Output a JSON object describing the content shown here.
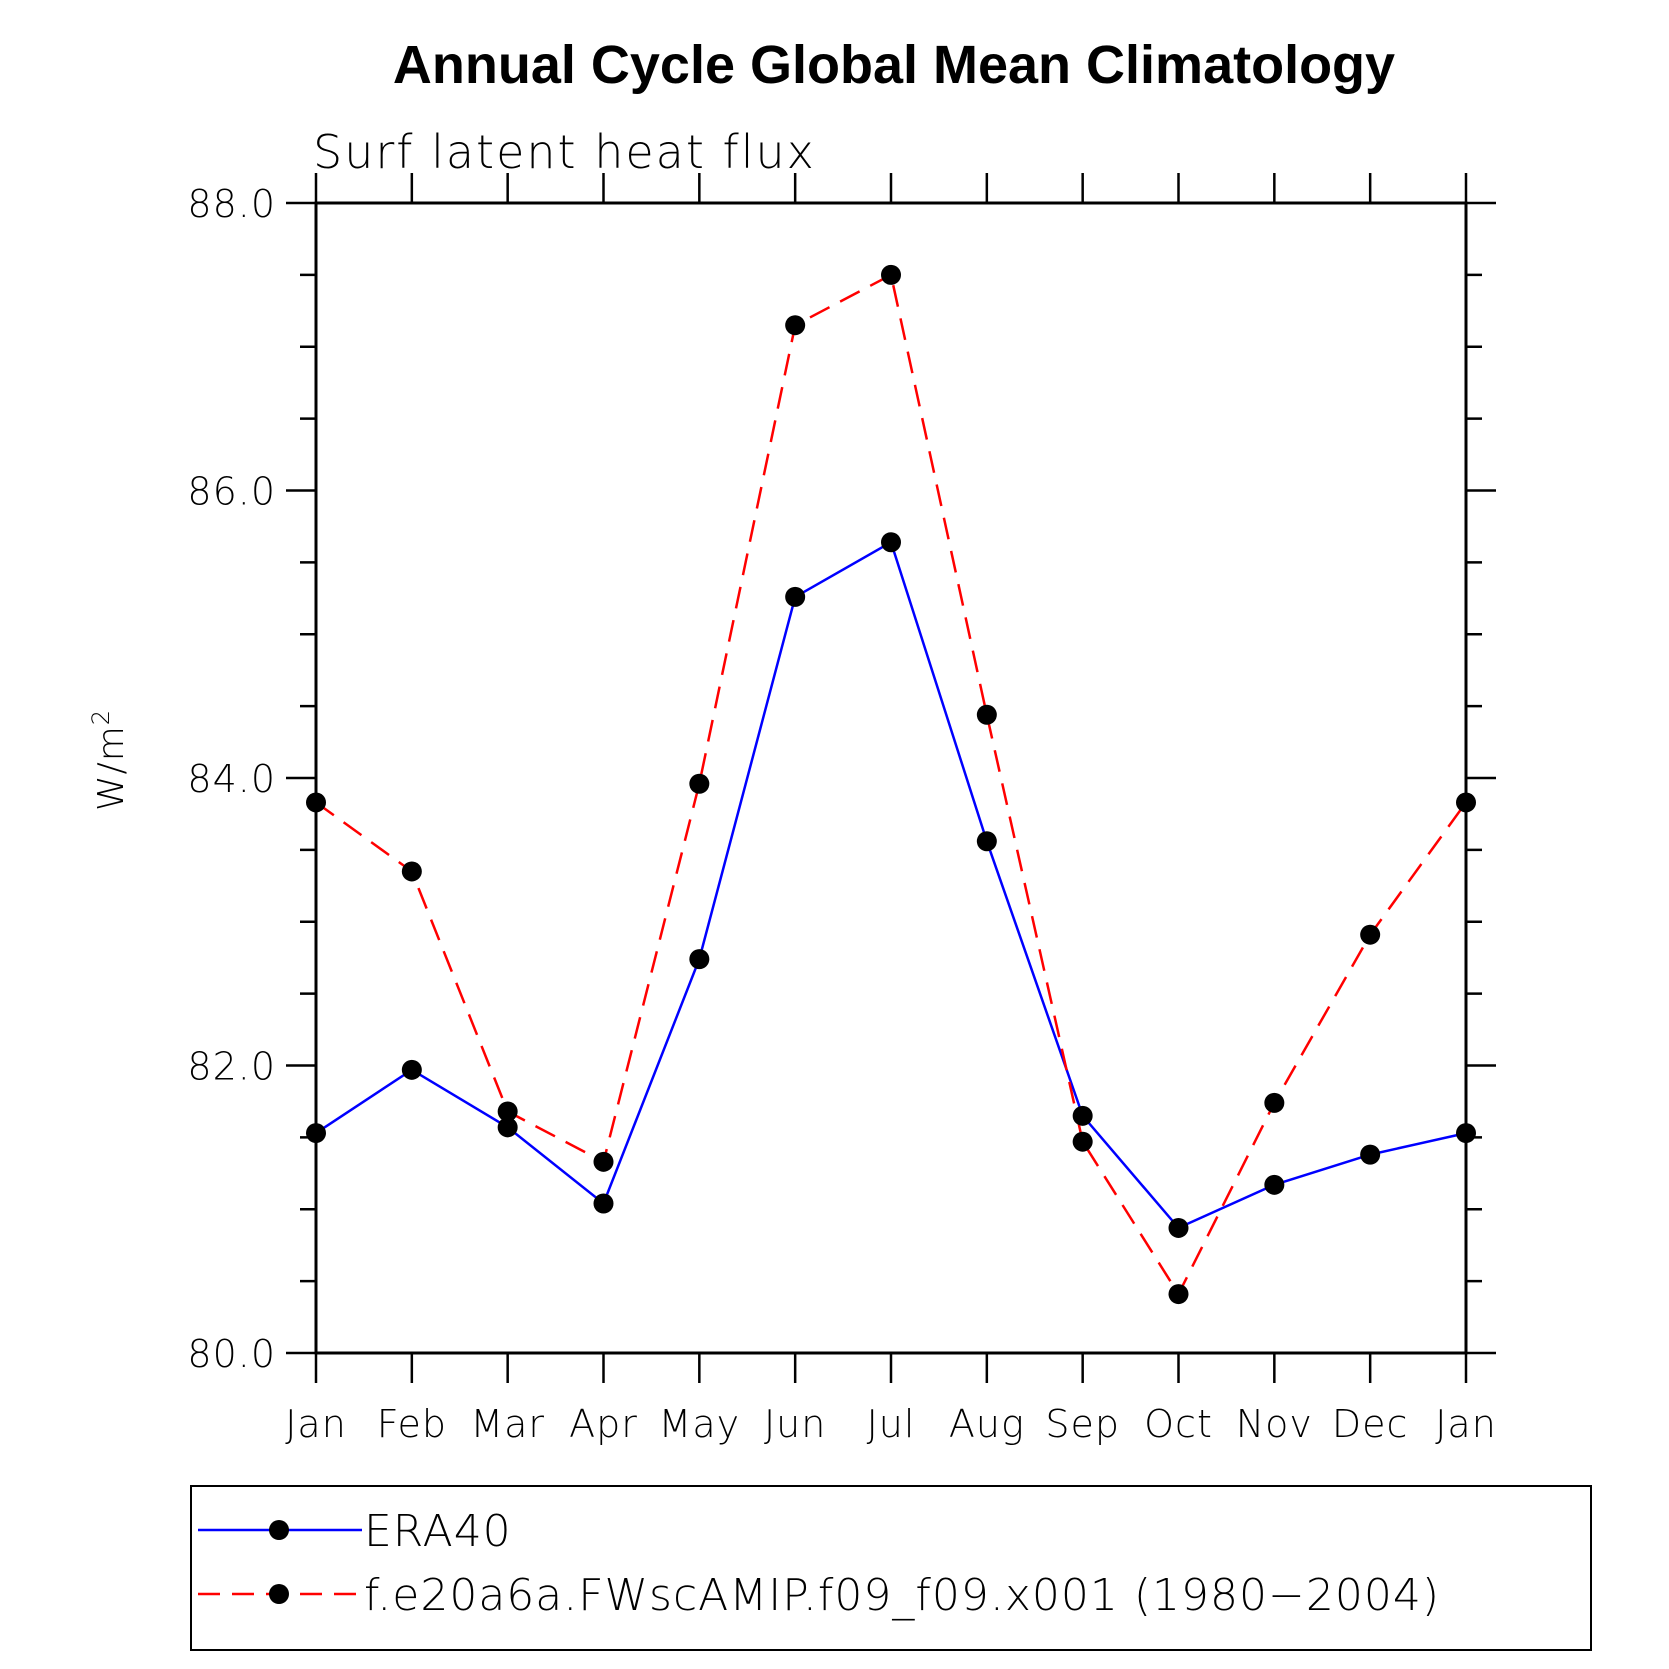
{
  "chart_data": {
    "type": "line",
    "title": "Annual Cycle Global Mean Climatology",
    "subtitle": "Surf latent heat flux",
    "ylabel": "W/m",
    "ylabel_superscript": "2",
    "xlabel": "",
    "categories": [
      "Jan",
      "Feb",
      "Mar",
      "Apr",
      "May",
      "Jun",
      "Jul",
      "Aug",
      "Sep",
      "Oct",
      "Nov",
      "Dec",
      "Jan"
    ],
    "ylim": [
      80.0,
      88.0
    ],
    "yticks": [
      "80.0",
      "82.0",
      "84.0",
      "86.0",
      "88.0"
    ],
    "grid": false,
    "legend_position": "bottom",
    "series": [
      {
        "name": "ERA40",
        "color": "#0000ff",
        "dash": "solid",
        "values": [
          81.53,
          81.97,
          81.57,
          81.04,
          82.74,
          85.26,
          85.64,
          83.56,
          81.65,
          80.87,
          81.17,
          81.38,
          81.53
        ]
      },
      {
        "name": "f.e20a6a.FWscAMIP.f09_f09.x001 (1980−2004)",
        "color": "#ff0000",
        "dash": "dashed",
        "values": [
          83.83,
          83.35,
          81.68,
          81.33,
          83.96,
          87.15,
          87.5,
          84.44,
          81.47,
          80.41,
          81.74,
          82.91,
          83.83
        ]
      }
    ]
  }
}
